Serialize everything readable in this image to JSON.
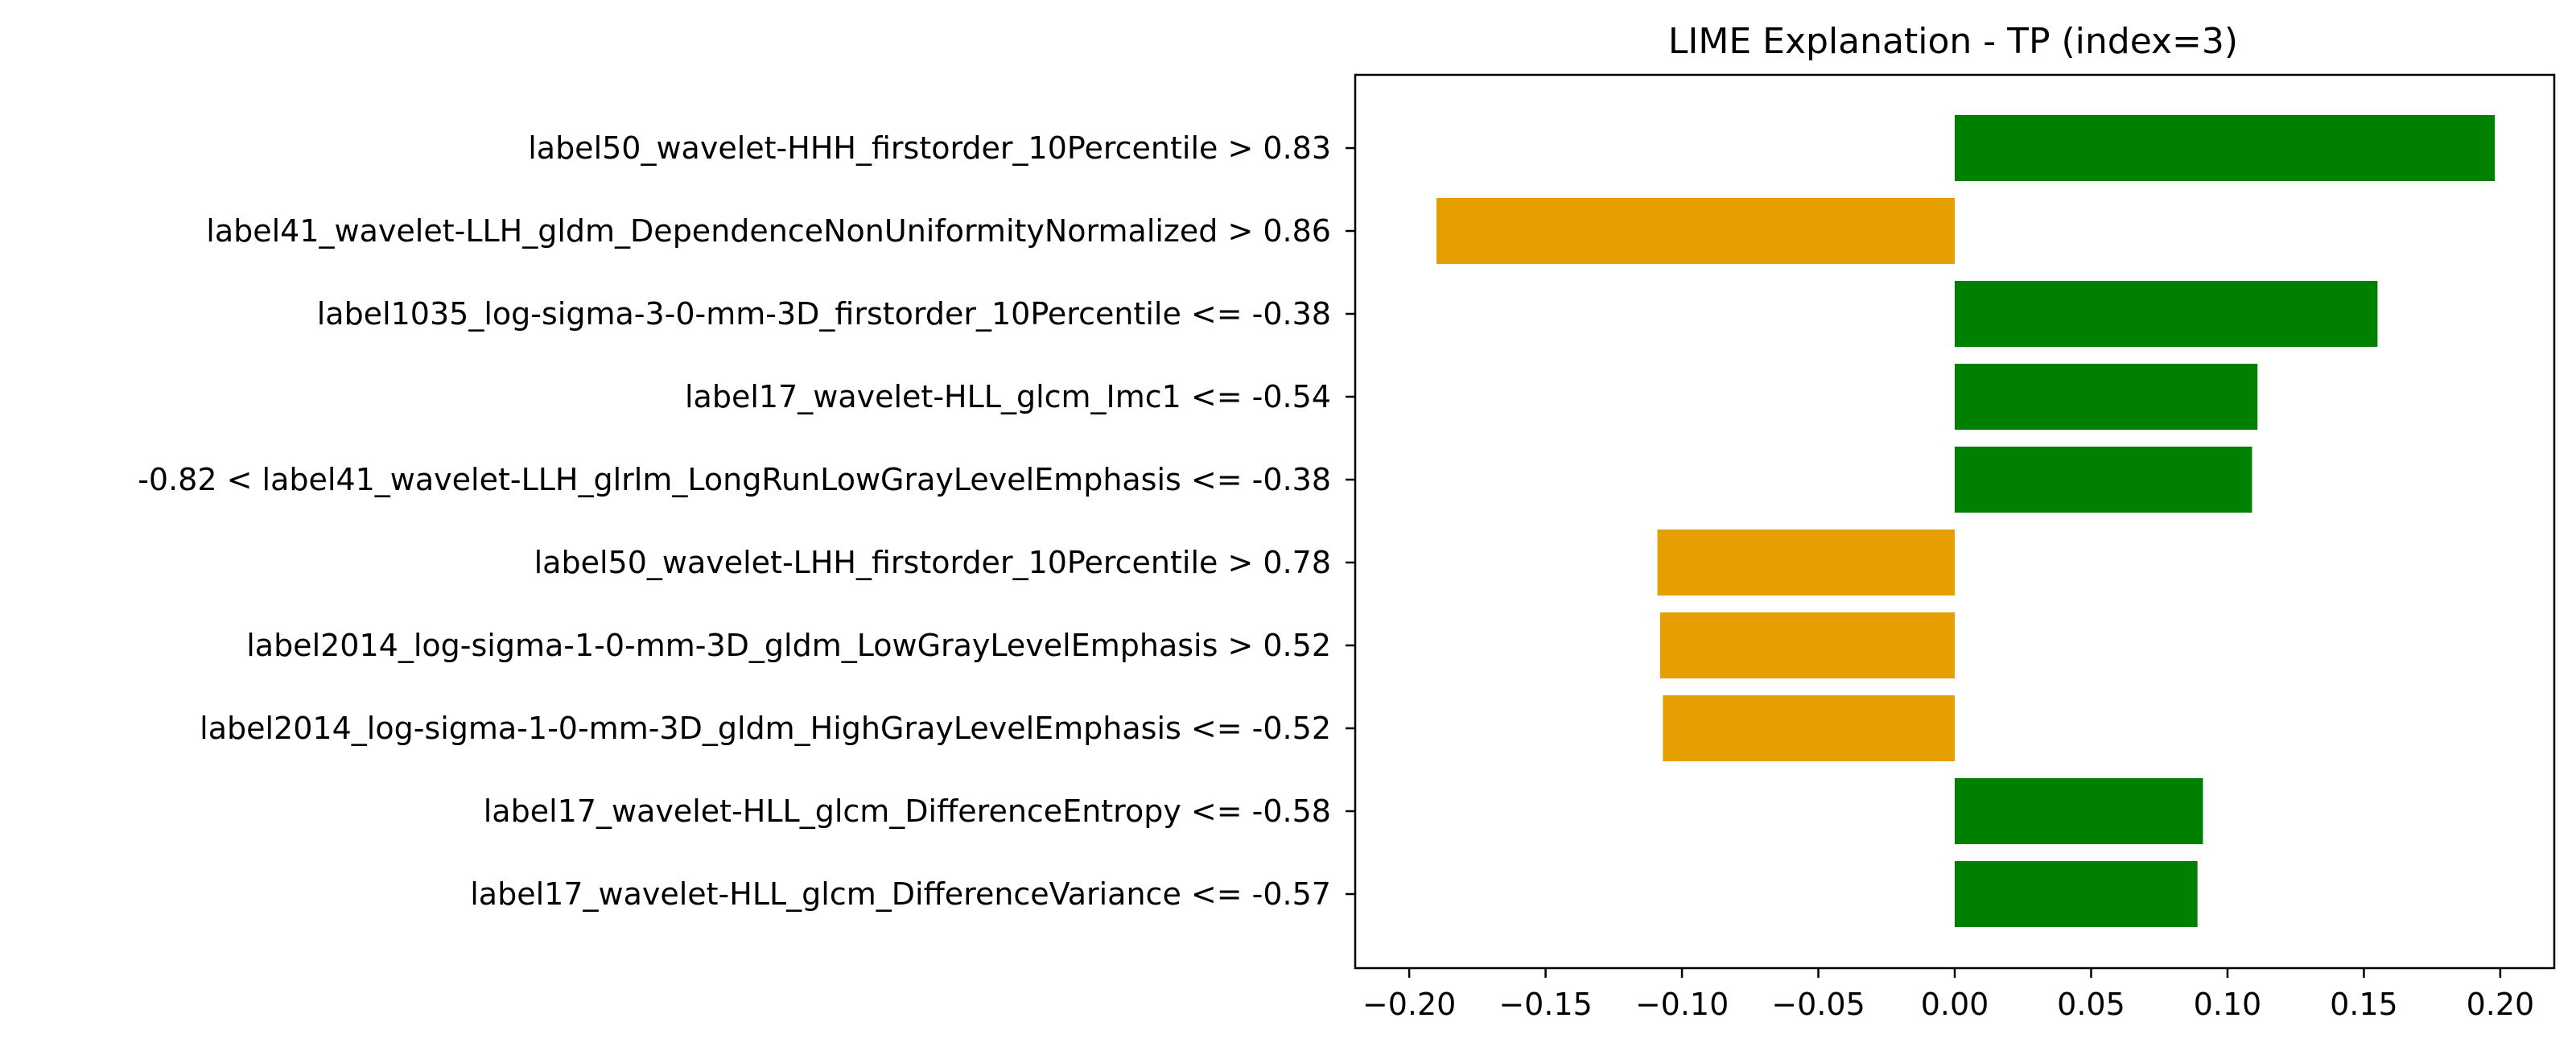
{
  "chart_data": {
    "type": "bar",
    "orientation": "horizontal",
    "title": "LIME Explanation - TP (index=3)",
    "xlabel": "",
    "ylabel": "",
    "grid": false,
    "xlim": [
      -0.2198,
      0.2198
    ],
    "xticks": [
      -0.2,
      -0.15,
      -0.1,
      -0.05,
      0.0,
      0.05,
      0.1,
      0.15,
      0.2
    ],
    "xtick_labels": [
      "−0.20",
      "−0.15",
      "−0.10",
      "−0.05",
      "0.00",
      "0.05",
      "0.10",
      "0.15",
      "0.20"
    ],
    "categories": [
      "label50_wavelet-HHH_firstorder_10Percentile > 0.83",
      "label41_wavelet-LLH_gldm_DependenceNonUniformityNormalized > 0.86",
      "label1035_log-sigma-3-0-mm-3D_firstorder_10Percentile <= -0.38",
      "label17_wavelet-HLL_glcm_Imc1 <= -0.54",
      "-0.82 < label41_wavelet-LLH_glrlm_LongRunLowGrayLevelEmphasis <= -0.38",
      "label50_wavelet-LHH_firstorder_10Percentile > 0.78",
      "label2014_log-sigma-1-0-mm-3D_gldm_LowGrayLevelEmphasis > 0.52",
      "label2014_log-sigma-1-0-mm-3D_gldm_HighGrayLevelEmphasis <= -0.52",
      "label17_wavelet-HLL_glcm_DifferenceEntropy <= -0.58",
      "label17_wavelet-HLL_glcm_DifferenceVariance <= -0.57"
    ],
    "values": [
      0.198,
      -0.19,
      0.155,
      0.111,
      0.109,
      -0.109,
      -0.108,
      -0.107,
      0.091,
      0.089
    ],
    "colors": {
      "positive": "#008000",
      "negative": "#e69f00"
    }
  }
}
